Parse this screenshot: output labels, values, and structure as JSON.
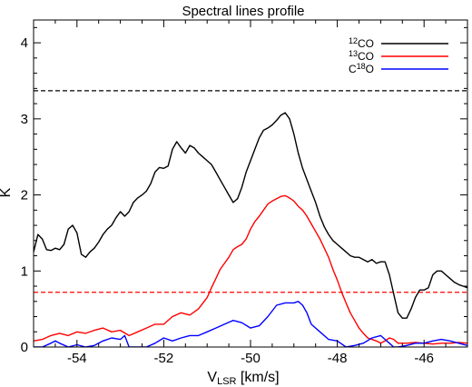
{
  "chart_data": {
    "type": "line",
    "title": "Spectral lines profile",
    "xlabel_main": "V",
    "xlabel_sub": "LSR",
    "xlabel_rest": " [km/s]",
    "ylabel": "K",
    "xlim": [
      -55.0,
      -45.0
    ],
    "ylim": [
      0,
      4.3
    ],
    "xticks": [
      -54,
      -52,
      -50,
      -48,
      -46
    ],
    "yticks": [
      0,
      1,
      2,
      3,
      4
    ],
    "legend_position": "top-right",
    "series": [
      {
        "legend_sup": "12",
        "legend_rest": "CO",
        "color": "#000000",
        "x": [
          -55.0,
          -54.9,
          -54.8,
          -54.7,
          -54.6,
          -54.5,
          -54.4,
          -54.3,
          -54.2,
          -54.1,
          -54.0,
          -53.9,
          -53.8,
          -53.7,
          -53.6,
          -53.5,
          -53.4,
          -53.3,
          -53.2,
          -53.1,
          -53.0,
          -52.9,
          -52.8,
          -52.7,
          -52.6,
          -52.5,
          -52.4,
          -52.3,
          -52.2,
          -52.1,
          -52.0,
          -51.9,
          -51.8,
          -51.7,
          -51.6,
          -51.5,
          -51.4,
          -51.3,
          -51.2,
          -51.1,
          -51.0,
          -50.9,
          -50.8,
          -50.7,
          -50.6,
          -50.5,
          -50.4,
          -50.3,
          -50.2,
          -50.1,
          -50.0,
          -49.9,
          -49.8,
          -49.7,
          -49.6,
          -49.5,
          -49.4,
          -49.3,
          -49.2,
          -49.1,
          -49.0,
          -48.9,
          -48.8,
          -48.7,
          -48.6,
          -48.5,
          -48.4,
          -48.3,
          -48.2,
          -48.1,
          -48.0,
          -47.9,
          -47.8,
          -47.7,
          -47.6,
          -47.5,
          -47.4,
          -47.3,
          -47.2,
          -47.1,
          -47.0,
          -46.9,
          -46.8,
          -46.7,
          -46.6,
          -46.5,
          -46.4,
          -46.3,
          -46.2,
          -46.1,
          -46.0,
          -45.9,
          -45.8,
          -45.7,
          -45.6,
          -45.5,
          -45.4,
          -45.3,
          -45.2,
          -45.1,
          -45.0
        ],
        "y": [
          1.25,
          1.48,
          1.42,
          1.28,
          1.27,
          1.3,
          1.28,
          1.35,
          1.55,
          1.6,
          1.5,
          1.22,
          1.18,
          1.25,
          1.3,
          1.38,
          1.48,
          1.55,
          1.6,
          1.7,
          1.78,
          1.72,
          1.78,
          1.9,
          1.96,
          2.0,
          2.05,
          2.15,
          2.3,
          2.36,
          2.35,
          2.38,
          2.6,
          2.7,
          2.62,
          2.55,
          2.65,
          2.62,
          2.55,
          2.5,
          2.45,
          2.4,
          2.3,
          2.2,
          2.1,
          2.0,
          1.9,
          1.95,
          2.1,
          2.3,
          2.45,
          2.6,
          2.75,
          2.85,
          2.88,
          2.92,
          2.98,
          3.05,
          3.08,
          3.0,
          2.8,
          2.55,
          2.35,
          2.2,
          2.05,
          1.9,
          1.72,
          1.58,
          1.48,
          1.4,
          1.35,
          1.3,
          1.25,
          1.2,
          1.18,
          1.18,
          1.15,
          1.12,
          1.15,
          1.1,
          1.12,
          1.12,
          0.95,
          0.7,
          0.45,
          0.38,
          0.38,
          0.5,
          0.65,
          0.75,
          0.75,
          0.78,
          0.95,
          1.0,
          1.0,
          0.95,
          0.9,
          0.85,
          0.82,
          0.8,
          0.78
        ],
        "y_full_note": ""
      },
      {
        "legend_sup": "13",
        "legend_rest": "CO",
        "color": "#ff0000",
        "x": [
          -55.0,
          -54.8,
          -54.6,
          -54.4,
          -54.2,
          -54.0,
          -53.8,
          -53.6,
          -53.4,
          -53.2,
          -53.0,
          -52.8,
          -52.6,
          -52.4,
          -52.2,
          -52.0,
          -51.8,
          -51.6,
          -51.4,
          -51.2,
          -51.0,
          -50.9,
          -50.8,
          -50.7,
          -50.6,
          -50.5,
          -50.4,
          -50.3,
          -50.2,
          -50.1,
          -50.0,
          -49.9,
          -49.8,
          -49.7,
          -49.6,
          -49.5,
          -49.4,
          -49.3,
          -49.2,
          -49.1,
          -49.0,
          -48.9,
          -48.8,
          -48.7,
          -48.6,
          -48.5,
          -48.4,
          -48.3,
          -48.2,
          -48.1,
          -48.0,
          -47.9,
          -47.8,
          -47.7,
          -47.6,
          -47.5,
          -47.4,
          -47.3,
          -47.2,
          -47.1,
          -47.0,
          -46.9,
          -46.8,
          -46.7,
          -46.6,
          -46.4,
          -46.2,
          -46.0,
          -45.8,
          -45.6,
          -45.4,
          -45.2,
          -45.0
        ],
        "y": [
          0.08,
          0.1,
          0.15,
          0.18,
          0.15,
          0.2,
          0.18,
          0.22,
          0.25,
          0.2,
          0.22,
          0.15,
          0.2,
          0.25,
          0.3,
          0.3,
          0.4,
          0.45,
          0.42,
          0.5,
          0.65,
          0.78,
          0.9,
          1.02,
          1.1,
          1.18,
          1.28,
          1.32,
          1.35,
          1.42,
          1.55,
          1.65,
          1.72,
          1.8,
          1.88,
          1.92,
          1.95,
          1.98,
          1.99,
          1.96,
          1.92,
          1.85,
          1.8,
          1.72,
          1.62,
          1.52,
          1.42,
          1.3,
          1.18,
          1.02,
          0.88,
          0.72,
          0.58,
          0.45,
          0.35,
          0.25,
          0.18,
          0.12,
          0.1,
          0.08,
          0.05,
          0.08,
          0.12,
          0.1,
          0.05,
          0.05,
          0.06,
          0.05,
          0.04,
          0.05,
          0.05,
          0.06,
          0.05
        ]
      },
      {
        "legend_sup": "18",
        "legend_pre": "C",
        "legend_rest": "O",
        "color": "#0000ff",
        "x": [
          -55.0,
          -54.8,
          -54.6,
          -54.5,
          -54.4,
          -54.2,
          -54.0,
          -53.8,
          -53.6,
          -53.4,
          -53.2,
          -53.0,
          -52.9,
          -52.8,
          -52.6,
          -52.4,
          -52.2,
          -52.0,
          -51.8,
          -51.6,
          -51.4,
          -51.2,
          -51.0,
          -50.8,
          -50.6,
          -50.4,
          -50.2,
          -50.0,
          -49.8,
          -49.6,
          -49.4,
          -49.2,
          -49.0,
          -48.9,
          -48.8,
          -48.7,
          -48.6,
          -48.4,
          -48.2,
          -48.0,
          -47.8,
          -47.6,
          -47.4,
          -47.2,
          -47.0,
          -46.9,
          -46.8,
          -46.7,
          -46.6,
          -46.4,
          -46.2,
          -46.0,
          -45.8,
          -45.6,
          -45.4,
          -45.2,
          -45.0
        ],
        "y": [
          0.0,
          0.0,
          0.05,
          0.08,
          0.05,
          0.0,
          0.03,
          0.0,
          0.02,
          0.08,
          0.12,
          0.1,
          0.15,
          0.0,
          0.0,
          0.0,
          0.05,
          0.12,
          0.08,
          0.12,
          0.15,
          0.15,
          0.2,
          0.25,
          0.3,
          0.35,
          0.32,
          0.25,
          0.28,
          0.4,
          0.55,
          0.58,
          0.58,
          0.6,
          0.55,
          0.45,
          0.3,
          0.2,
          0.1,
          0.08,
          0.0,
          0.02,
          0.05,
          0.12,
          0.15,
          0.1,
          0.05,
          0.0,
          0.0,
          0.02,
          0.05,
          0.05,
          0.08,
          0.1,
          0.08,
          0.05,
          0.02
        ]
      }
    ],
    "thresholds": [
      {
        "y": 3.37,
        "color": "#000000",
        "style": "dashed"
      },
      {
        "y": 0.72,
        "color": "#ff0000",
        "style": "dashed"
      }
    ]
  }
}
